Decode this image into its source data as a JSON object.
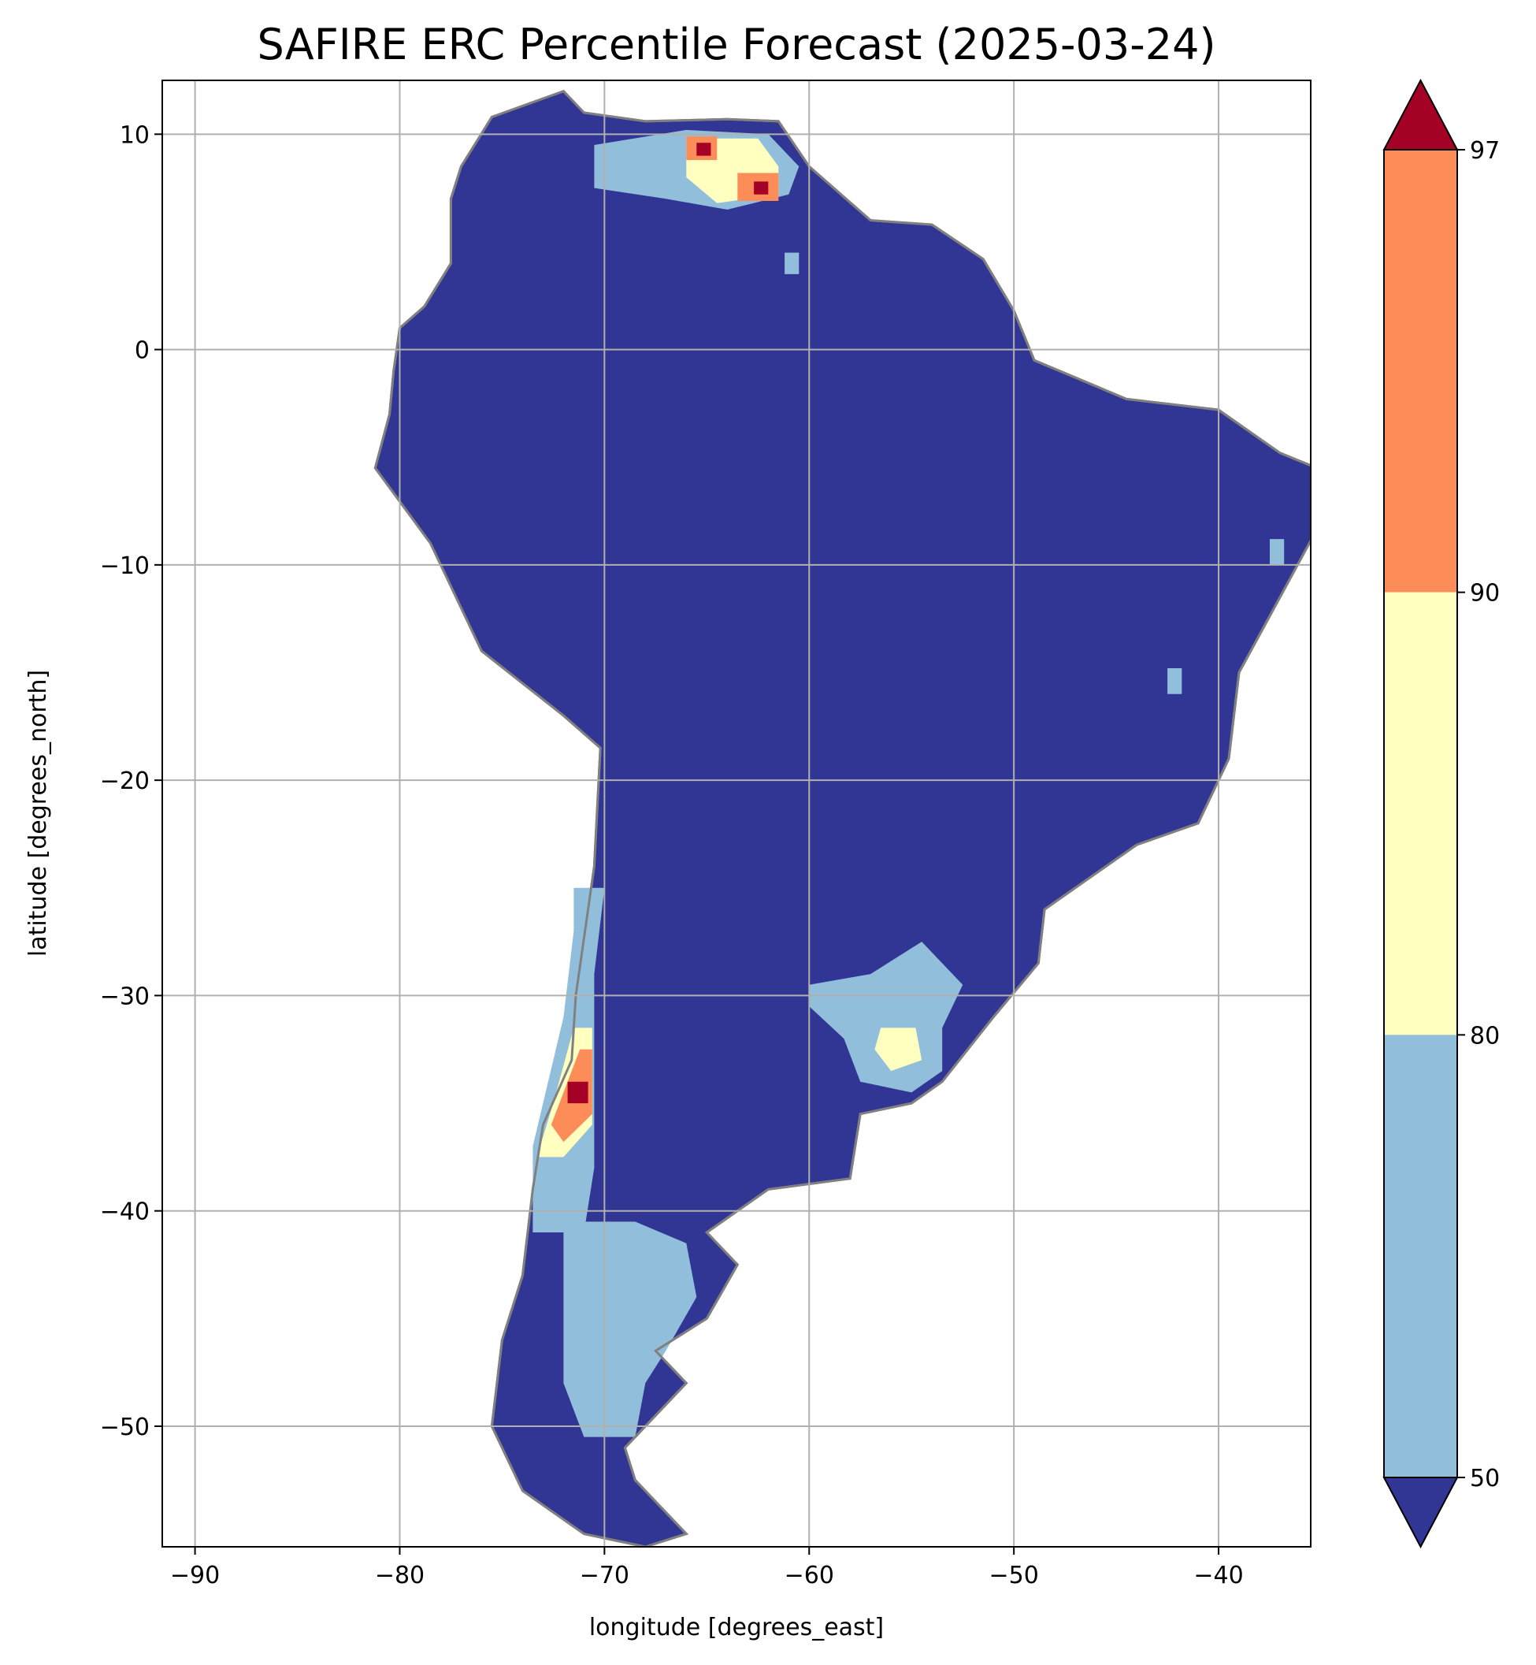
{
  "chart_data": {
    "type": "heatmap",
    "title": "SAFIRE ERC Percentile Forecast (2025-03-24)",
    "xlabel": "longitude [degrees_east]",
    "ylabel": "latitude [degrees_north]",
    "xlim": [
      -91.6,
      -35.5
    ],
    "ylim": [
      -55.6,
      12.5
    ],
    "xticks": [
      -90,
      -80,
      -70,
      -60,
      -50,
      -40
    ],
    "yticks": [
      10,
      0,
      -10,
      -20,
      -30,
      -40,
      -50
    ],
    "grid": true,
    "colorbar": {
      "ticks": [
        50,
        80,
        90,
        97
      ],
      "extend": "both",
      "bins": [
        {
          "range": "<50",
          "color": "#313695"
        },
        {
          "range": "50-80",
          "color": "#91bfdb"
        },
        {
          "range": "80-90",
          "color": "#ffffbf"
        },
        {
          "range": "90-97",
          "color": "#fc8d59"
        },
        {
          "range": ">97",
          "color": "#a50026"
        }
      ]
    },
    "border_color": "#808080",
    "land_outline": [
      [
        -77,
        8.5
      ],
      [
        -75.5,
        10.8
      ],
      [
        -72,
        12
      ],
      [
        -71,
        11
      ],
      [
        -68,
        10.6
      ],
      [
        -64,
        10.7
      ],
      [
        -61.5,
        10.6
      ],
      [
        -60,
        8.5
      ],
      [
        -57,
        6
      ],
      [
        -54,
        5.8
      ],
      [
        -51.5,
        4.2
      ],
      [
        -50,
        1.8
      ],
      [
        -49,
        -0.5
      ],
      [
        -44.5,
        -2.3
      ],
      [
        -40,
        -2.8
      ],
      [
        -37,
        -4.8
      ],
      [
        -35.2,
        -5.5
      ],
      [
        -35,
        -8
      ],
      [
        -37,
        -11.5
      ],
      [
        -39,
        -15
      ],
      [
        -39.5,
        -19
      ],
      [
        -41,
        -22
      ],
      [
        -44,
        -23
      ],
      [
        -48.5,
        -26
      ],
      [
        -48.8,
        -28.5
      ],
      [
        -51,
        -31
      ],
      [
        -53.5,
        -34
      ],
      [
        -55,
        -35
      ],
      [
        -57.5,
        -35.5
      ],
      [
        -58,
        -38.5
      ],
      [
        -62,
        -39
      ],
      [
        -65,
        -41
      ],
      [
        -63.5,
        -42.5
      ],
      [
        -65,
        -45
      ],
      [
        -67.5,
        -46.5
      ],
      [
        -66,
        -48
      ],
      [
        -69,
        -51
      ],
      [
        -68.5,
        -52.5
      ],
      [
        -66,
        -55
      ],
      [
        -68,
        -55.6
      ],
      [
        -71,
        -55
      ],
      [
        -74,
        -53
      ],
      [
        -75.5,
        -50
      ],
      [
        -75,
        -46
      ],
      [
        -74,
        -43
      ],
      [
        -73.5,
        -39
      ],
      [
        -73,
        -36
      ],
      [
        -71.6,
        -33
      ],
      [
        -71.4,
        -30
      ],
      [
        -70.5,
        -24
      ],
      [
        -70.2,
        -18.5
      ],
      [
        -72,
        -17
      ],
      [
        -76,
        -14
      ],
      [
        -78.5,
        -9
      ],
      [
        -81.2,
        -5.5
      ],
      [
        -80.5,
        -3
      ],
      [
        -80.3,
        -1
      ],
      [
        -80,
        1
      ],
      [
        -78.8,
        2
      ],
      [
        -77.5,
        4
      ],
      [
        -77.5,
        7
      ],
      [
        -77,
        8.5
      ]
    ],
    "patches": [
      {
        "bin": "50-80",
        "poly": [
          [
            -70.5,
            9.5
          ],
          [
            -66,
            10.2
          ],
          [
            -62,
            10
          ],
          [
            -60.5,
            8.5
          ],
          [
            -61,
            7.2
          ],
          [
            -64,
            6.5
          ],
          [
            -67,
            7
          ],
          [
            -70.5,
            7.5
          ]
        ]
      },
      {
        "bin": "80-90",
        "poly": [
          [
            -66,
            9.8
          ],
          [
            -62.5,
            9.8
          ],
          [
            -61.5,
            8.5
          ],
          [
            -61.5,
            7.2
          ],
          [
            -64.5,
            6.8
          ],
          [
            -66,
            8
          ]
        ]
      },
      {
        "bin": "90-97",
        "poly": [
          [
            -66,
            9.9
          ],
          [
            -64.5,
            9.9
          ],
          [
            -64.5,
            8.8
          ],
          [
            -66,
            8.8
          ]
        ]
      },
      {
        "bin": "90-97",
        "poly": [
          [
            -63.5,
            8.2
          ],
          [
            -61.5,
            8.2
          ],
          [
            -61.5,
            6.9
          ],
          [
            -63.5,
            6.9
          ]
        ]
      },
      {
        "bin": ">97",
        "poly": [
          [
            -65.5,
            9.6
          ],
          [
            -64.8,
            9.6
          ],
          [
            -64.8,
            9
          ],
          [
            -65.5,
            9
          ]
        ]
      },
      {
        "bin": ">97",
        "poly": [
          [
            -62.7,
            7.8
          ],
          [
            -62,
            7.8
          ],
          [
            -62,
            7.2
          ],
          [
            -62.7,
            7.2
          ]
        ]
      },
      {
        "bin": "50-80",
        "poly": [
          [
            -71.5,
            -25
          ],
          [
            -70,
            -25
          ],
          [
            -70.5,
            -29
          ],
          [
            -70.5,
            -38
          ],
          [
            -71,
            -41
          ],
          [
            -73.5,
            -41
          ],
          [
            -73.5,
            -37
          ],
          [
            -72,
            -31
          ],
          [
            -71.5,
            -27
          ]
        ]
      },
      {
        "bin": "80-90",
        "poly": [
          [
            -71.5,
            -31.5
          ],
          [
            -70.6,
            -31.5
          ],
          [
            -70.6,
            -36
          ],
          [
            -72,
            -37.5
          ],
          [
            -73.3,
            -37.5
          ],
          [
            -72.5,
            -35
          ]
        ]
      },
      {
        "bin": "90-97",
        "poly": [
          [
            -71.2,
            -32.5
          ],
          [
            -70.6,
            -32.5
          ],
          [
            -70.6,
            -35.5
          ],
          [
            -72,
            -36.8
          ],
          [
            -72.6,
            -36
          ],
          [
            -71.8,
            -34
          ]
        ]
      },
      {
        "bin": ">97",
        "poly": [
          [
            -71.8,
            -34
          ],
          [
            -70.8,
            -34
          ],
          [
            -70.8,
            -35
          ],
          [
            -71.8,
            -35
          ]
        ]
      },
      {
        "bin": "50-80",
        "poly": [
          [
            -72,
            -40.5
          ],
          [
            -68.5,
            -40.5
          ],
          [
            -66,
            -41.5
          ],
          [
            -65.5,
            -44
          ],
          [
            -67,
            -46.5
          ],
          [
            -68,
            -48
          ],
          [
            -68.5,
            -50.5
          ],
          [
            -71,
            -50.5
          ],
          [
            -72,
            -48
          ],
          [
            -72,
            -44
          ]
        ]
      },
      {
        "bin": "50-80",
        "poly": [
          [
            -60,
            -29.5
          ],
          [
            -57,
            -29
          ],
          [
            -54.5,
            -27.5
          ],
          [
            -52.5,
            -29.5
          ],
          [
            -53.5,
            -31.5
          ],
          [
            -53.5,
            -33.5
          ],
          [
            -55,
            -34.5
          ],
          [
            -57.5,
            -34
          ],
          [
            -58.3,
            -32
          ],
          [
            -60,
            -30.5
          ]
        ]
      },
      {
        "bin": "80-90",
        "poly": [
          [
            -56.5,
            -31.5
          ],
          [
            -54.8,
            -31.5
          ],
          [
            -54.5,
            -33
          ],
          [
            -56,
            -33.5
          ],
          [
            -56.8,
            -32.5
          ]
        ]
      },
      {
        "bin": "50-80",
        "poly": [
          [
            -37.5,
            -8.8
          ],
          [
            -36.8,
            -8.8
          ],
          [
            -36.8,
            -10
          ],
          [
            -37.5,
            -10
          ]
        ]
      },
      {
        "bin": "50-80",
        "poly": [
          [
            -42.5,
            -14.8
          ],
          [
            -41.8,
            -14.8
          ],
          [
            -41.8,
            -16
          ],
          [
            -42.5,
            -16
          ]
        ]
      },
      {
        "bin": "50-80",
        "poly": [
          [
            -61.2,
            4.5
          ],
          [
            -60.5,
            4.5
          ],
          [
            -60.5,
            3.5
          ],
          [
            -61.2,
            3.5
          ]
        ]
      }
    ]
  }
}
